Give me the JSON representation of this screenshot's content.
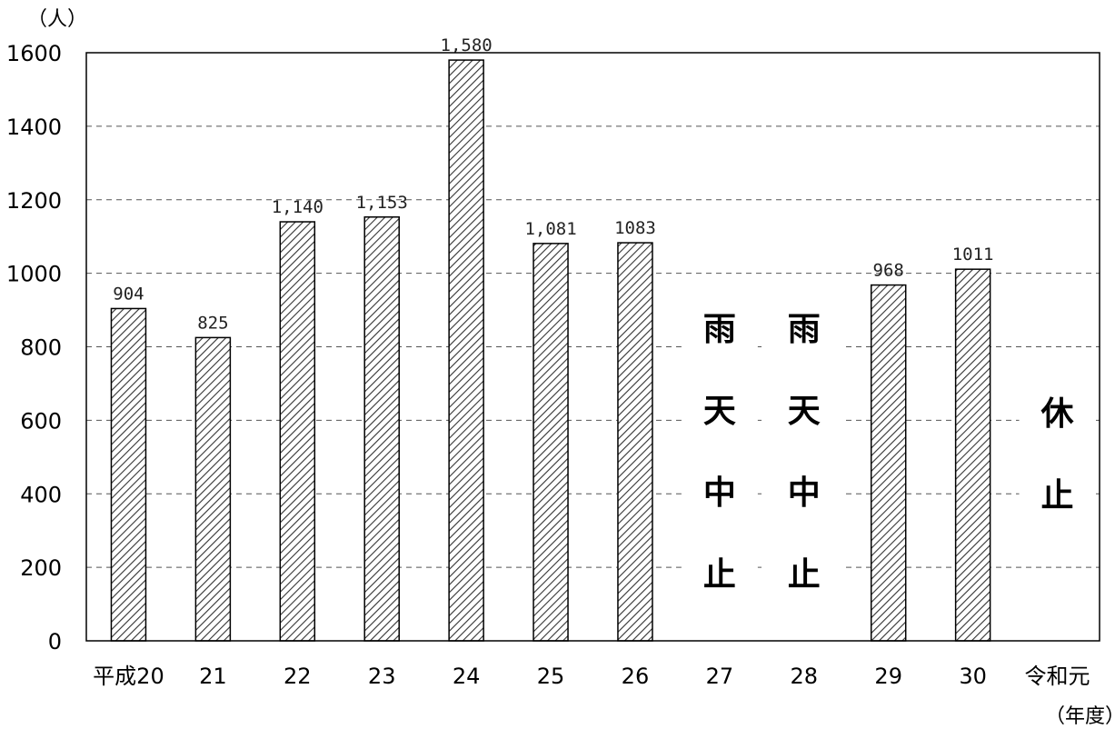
{
  "chart_data": {
    "type": "bar",
    "categories": [
      "平成20",
      "21",
      "22",
      "23",
      "24",
      "25",
      "26",
      "27",
      "28",
      "29",
      "30",
      "令和元"
    ],
    "values": [
      904,
      825,
      1140,
      1153,
      1580,
      1081,
      1083,
      null,
      null,
      968,
      1011,
      null
    ],
    "value_labels": [
      "904",
      "825",
      "1,140",
      "1,153",
      "1,580",
      "1,081",
      "1083",
      "",
      "",
      "968",
      "1011",
      ""
    ],
    "annotations": [
      {
        "category": "27",
        "text": "雨天中止"
      },
      {
        "category": "28",
        "text": "雨天中止"
      },
      {
        "category": "令和元",
        "text": "休止"
      }
    ],
    "title": "",
    "xlabel": "（年度）",
    "ylabel": "（人）",
    "ylim": [
      0,
      1600
    ],
    "yticks": [
      0,
      200,
      400,
      600,
      800,
      1000,
      1200,
      1400,
      1600
    ],
    "grid": true,
    "bar_fill": "diagonal-hatch",
    "colors": {
      "bar_stroke": "#000000",
      "hatch": "#333333",
      "grid": "#555555",
      "axis": "#000000"
    }
  }
}
